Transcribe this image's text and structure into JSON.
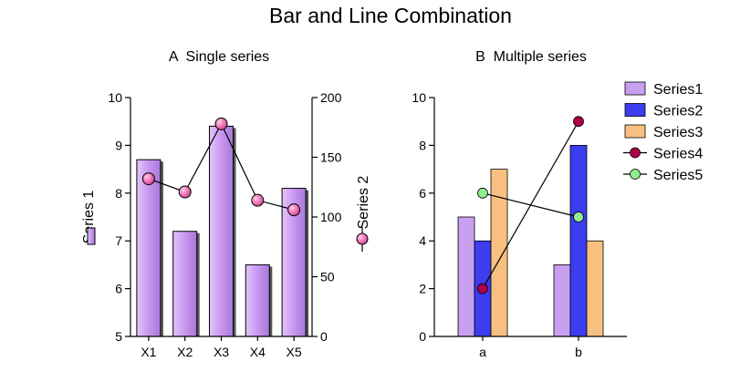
{
  "title": "Bar and Line Combination",
  "chart_data": [
    {
      "panel": "A",
      "title": "A  Single series",
      "type": "bar",
      "categories": [
        "X1",
        "X2",
        "X3",
        "X4",
        "X5"
      ],
      "series": [
        {
          "name": "Series 1",
          "type": "bar",
          "axis": "left",
          "values": [
            8.7,
            7.2,
            9.4,
            6.5,
            8.1
          ],
          "color": "#c896f0"
        },
        {
          "name": "Series 2",
          "type": "line",
          "axis": "right",
          "values": [
            132,
            121,
            178,
            114,
            106
          ],
          "color": "#f06eb4"
        }
      ],
      "ylabel_left": "Series 1",
      "ylabel_right": "Series 2",
      "ylim_left": [
        5,
        10
      ],
      "yticks_left": [
        "5",
        "6",
        "7",
        "8",
        "9",
        "10"
      ],
      "ylim_right": [
        0,
        200
      ],
      "yticks_right": [
        "0",
        "50",
        "100",
        "150",
        "200"
      ],
      "grid": false
    },
    {
      "panel": "B",
      "title": "B  Multiple series",
      "type": "bar",
      "categories": [
        "a",
        "b"
      ],
      "series": [
        {
          "name": "Series1",
          "type": "bar",
          "values": [
            5,
            3
          ],
          "color": "#c8a0f0"
        },
        {
          "name": "Series2",
          "type": "bar",
          "values": [
            4,
            8
          ],
          "color": "#3c3cf0"
        },
        {
          "name": "Series3",
          "type": "bar",
          "values": [
            7,
            4
          ],
          "color": "#f8c080"
        },
        {
          "name": "Series4",
          "type": "line",
          "values": [
            2,
            9
          ],
          "color": "#b0004a"
        },
        {
          "name": "Series5",
          "type": "line",
          "values": [
            6,
            5
          ],
          "color": "#90ee90"
        }
      ],
      "ylim": [
        0,
        10
      ],
      "yticks": [
        "0",
        "2",
        "4",
        "6",
        "8",
        "10"
      ],
      "legend": "right",
      "grid": false
    }
  ]
}
